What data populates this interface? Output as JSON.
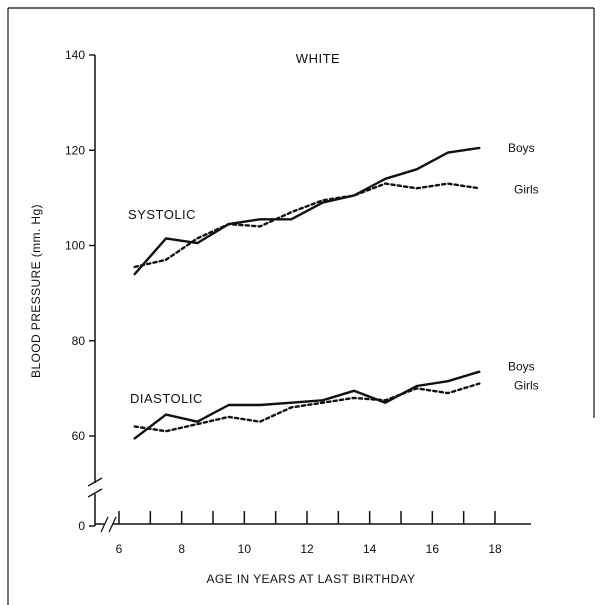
{
  "chart_data": {
    "type": "line",
    "title": "WHITE",
    "xlabel": "AGE IN YEARS AT LAST BIRTHDAY",
    "ylabel": "BLOOD PRESSURE (mm. Hg)",
    "xlim": [
      5,
      19
    ],
    "ylim": [
      0,
      140
    ],
    "x_ticks": [
      6,
      8,
      10,
      12,
      14,
      16,
      18
    ],
    "x_minor_ticks": [
      7,
      9,
      11,
      13,
      15,
      17
    ],
    "y_ticks": [
      0,
      60,
      80,
      100,
      120,
      140
    ],
    "y_axis_break": true,
    "grid": false,
    "x": [
      6.5,
      7.5,
      8.5,
      9.5,
      10.5,
      11.5,
      12.5,
      13.5,
      14.5,
      15.5,
      16.5,
      17.5
    ],
    "annotations": [
      {
        "text": "SYSTOLIC",
        "group": "systolic"
      },
      {
        "text": "DIASTOLIC",
        "group": "diastolic"
      }
    ],
    "series": [
      {
        "name": "Boys",
        "group": "systolic",
        "style": "solid",
        "values": [
          94,
          101.5,
          100.5,
          104.5,
          105.5,
          105.5,
          109,
          110.5,
          114,
          116,
          119.5,
          120.5
        ]
      },
      {
        "name": "Girls",
        "group": "systolic",
        "style": "dotted",
        "values": [
          95.5,
          97,
          101.5,
          104.5,
          104,
          107,
          109.5,
          110.5,
          113,
          112,
          113,
          112
        ]
      },
      {
        "name": "Boys",
        "group": "diastolic",
        "style": "solid",
        "values": [
          59.5,
          64.5,
          63,
          66.5,
          66.5,
          67,
          67.5,
          69.5,
          67,
          70.5,
          71.5,
          73.5
        ]
      },
      {
        "name": "Girls",
        "group": "diastolic",
        "style": "dotted",
        "values": [
          62,
          61,
          62.5,
          64,
          63,
          66,
          67,
          68,
          67.5,
          70,
          69,
          71
        ]
      }
    ]
  }
}
